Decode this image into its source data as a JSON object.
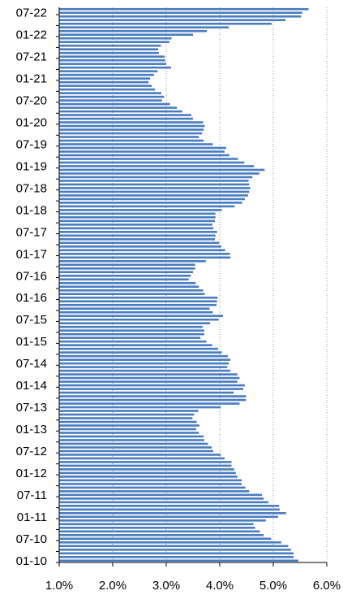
{
  "chart_data": {
    "type": "bar",
    "orientation": "horizontal",
    "grid": true,
    "xlim": [
      1.0,
      6.0
    ],
    "xticks": [
      "1.0%",
      "2.0%",
      "3.0%",
      "4.0%",
      "5.0%",
      "6.0%"
    ],
    "yticks": [
      "01-10",
      "07-10",
      "01-11",
      "07-11",
      "01-12",
      "07-12",
      "01-13",
      "07-13",
      "01-14",
      "07-14",
      "01-15",
      "07-15",
      "01-16",
      "07-16",
      "01-17",
      "07-17",
      "01-18",
      "07-18",
      "01-19",
      "07-19",
      "01-20",
      "07-20",
      "01-21",
      "07-21",
      "01-22",
      "07-22"
    ],
    "series": [
      {
        "color": "#4a7cc0",
        "start": "2010-01",
        "values": [
          5.47,
          5.38,
          5.38,
          5.33,
          5.28,
          5.15,
          4.96,
          4.82,
          4.75,
          4.66,
          4.63,
          4.86,
          5.09,
          5.24,
          5.12,
          5.11,
          4.91,
          4.82,
          4.79,
          4.55,
          4.48,
          4.41,
          4.41,
          4.33,
          4.3,
          4.27,
          4.22,
          4.22,
          4.09,
          4.02,
          3.88,
          3.85,
          3.78,
          3.71,
          3.7,
          3.61,
          3.56,
          3.62,
          3.57,
          3.49,
          3.52,
          3.6,
          4.02,
          4.37,
          4.49,
          4.49,
          4.26,
          4.44,
          4.47,
          4.33,
          4.37,
          4.33,
          4.2,
          4.14,
          4.17,
          4.2,
          4.15,
          4.04,
          3.97,
          3.86,
          3.75,
          3.64,
          3.71,
          3.71,
          3.68,
          3.82,
          3.98,
          4.06,
          3.87,
          3.81,
          3.94,
          3.95,
          3.96,
          3.72,
          3.69,
          3.61,
          3.55,
          3.42,
          3.46,
          3.5,
          3.54,
          3.54,
          3.74,
          4.2,
          4.19,
          4.1,
          4.03,
          3.99,
          3.91,
          3.92,
          3.95,
          3.88,
          3.86,
          3.91,
          3.92,
          3.92,
          4.04,
          4.28,
          4.42,
          4.47,
          4.53,
          4.55,
          4.57,
          4.55,
          4.54,
          4.61,
          4.74,
          4.84,
          4.64,
          4.46,
          4.34,
          4.18,
          4.09,
          4.12,
          3.87,
          3.7,
          3.61,
          3.67,
          3.7,
          3.72,
          3.69,
          3.5,
          3.47,
          3.3,
          3.2,
          3.07,
          2.92,
          2.96,
          2.91,
          2.79,
          2.73,
          2.67,
          2.7,
          2.77,
          2.84,
          3.09,
          3.0,
          2.98,
          2.97,
          2.86,
          2.85,
          2.9,
          3.06,
          3.1,
          3.5,
          3.76,
          4.17,
          4.97,
          5.23,
          5.52,
          5.54,
          5.66
        ]
      }
    ]
  }
}
